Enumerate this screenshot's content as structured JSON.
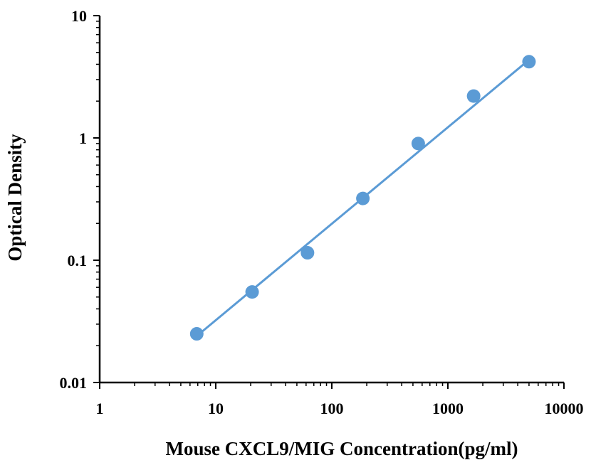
{
  "chart_data": {
    "type": "scatter",
    "title": "",
    "xlabel": "Mouse CXCL9/MIG Concentration(pg/ml)",
    "ylabel": "Optical Density",
    "x_scale": "log",
    "y_scale": "log",
    "xlim": [
      1,
      10000
    ],
    "ylim": [
      0.01,
      10
    ],
    "x_tick_labels": [
      "1",
      "10",
      "100",
      "1000",
      "10000"
    ],
    "y_tick_labels": [
      "0.01",
      "0.1",
      "1",
      "10"
    ],
    "grid": false,
    "legend": "none",
    "series": [
      {
        "x": [
          6.86,
          20.58,
          61.73,
          185.19,
          555.56,
          1666.67,
          5000
        ],
        "y": [
          0.025,
          0.055,
          0.115,
          0.32,
          0.9,
          2.2,
          4.2
        ]
      }
    ],
    "trendline": {
      "x": [
        6.86,
        5000
      ],
      "y": [
        0.024,
        4.35
      ]
    },
    "colors": {
      "marker": "#5b9bd5",
      "line": "#5b9bd5",
      "axis": "#000000"
    }
  }
}
